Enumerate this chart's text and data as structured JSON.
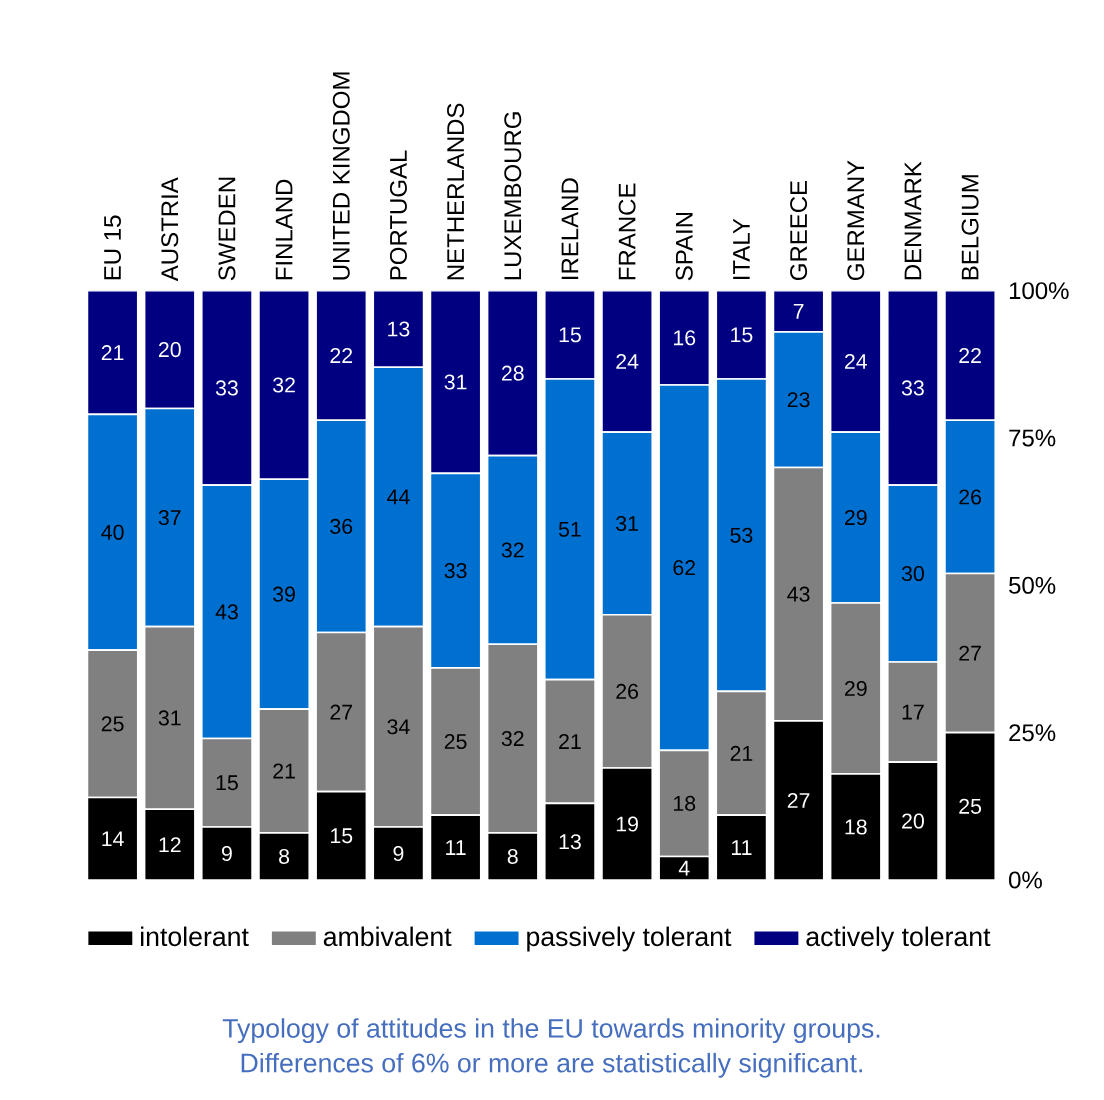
{
  "chart_data": {
    "type": "bar",
    "stacked": true,
    "data_labels": true,
    "legend": "bottom",
    "grid": false,
    "categories": [
      "EU 15",
      "AUSTRIA",
      "SWEDEN",
      "FINLAND",
      "UNITED KINGDOM",
      "PORTUGAL",
      "NETHERLANDS",
      "LUXEMBOURG",
      "IRELAND",
      "FRANCE",
      "SPAIN",
      "ITALY",
      "GREECE",
      "GERMANY",
      "DENMARK",
      "BELGIUM"
    ],
    "series": [
      {
        "name": "intolerant",
        "color": "#000000",
        "values": [
          14,
          12,
          9,
          8,
          15,
          9,
          11,
          8,
          13,
          19,
          4,
          11,
          27,
          18,
          20,
          25
        ]
      },
      {
        "name": "ambivalent",
        "color": "#808080",
        "values": [
          25,
          31,
          15,
          21,
          27,
          34,
          25,
          32,
          21,
          26,
          18,
          21,
          43,
          29,
          17,
          27
        ]
      },
      {
        "name": "passively tolerant",
        "color": "#0070d0",
        "values": [
          40,
          37,
          43,
          39,
          36,
          44,
          33,
          32,
          51,
          31,
          62,
          53,
          23,
          29,
          30,
          26
        ]
      },
      {
        "name": "actively tolerant",
        "color": "#000080",
        "values": [
          21,
          20,
          33,
          32,
          22,
          13,
          31,
          28,
          15,
          24,
          16,
          15,
          7,
          24,
          33,
          22
        ]
      }
    ],
    "ylim": [
      0,
      100
    ],
    "yticks": [
      {
        "value": 0,
        "label": "0%"
      },
      {
        "value": 25,
        "label": "25%"
      },
      {
        "value": 50,
        "label": "50%"
      },
      {
        "value": 75,
        "label": "75%"
      },
      {
        "value": 100,
        "label": "100%"
      }
    ],
    "annotations": [
      "Typology of attitudes in the EU towards minority groups.",
      "Differences of 6% or more are statistically significant."
    ]
  }
}
